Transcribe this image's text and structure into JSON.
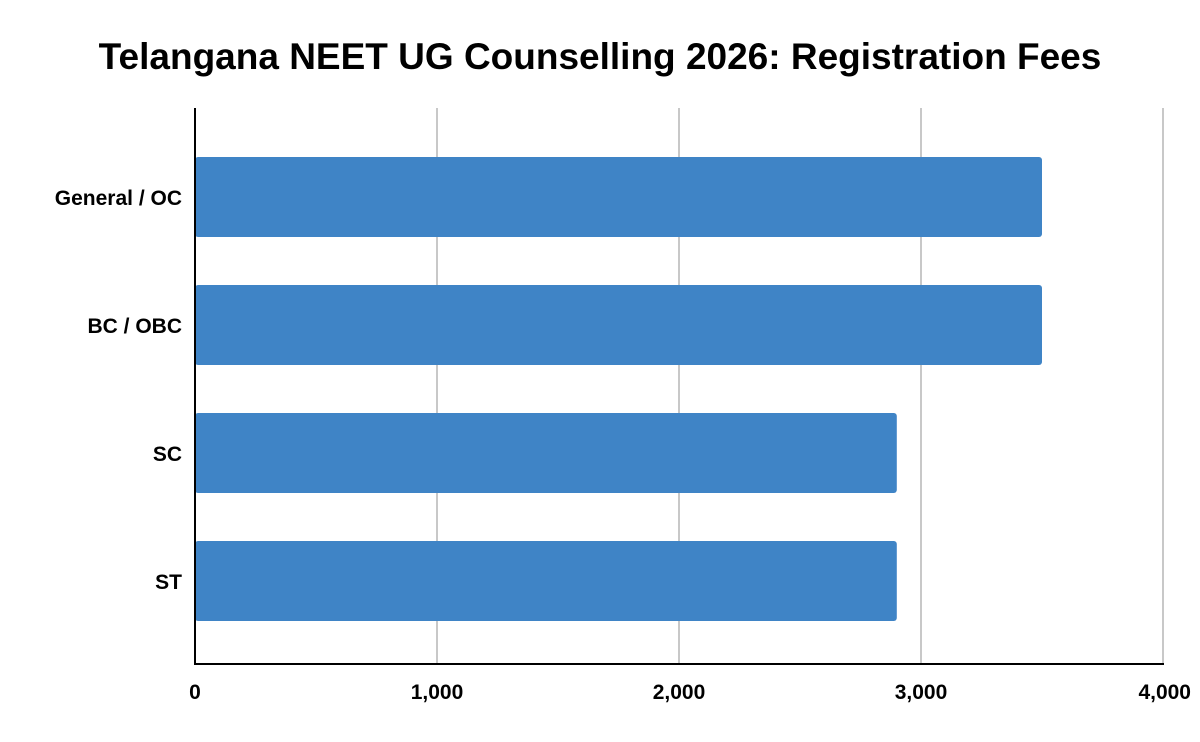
{
  "chart_data": {
    "type": "bar",
    "orientation": "horizontal",
    "title": "Telangana NEET UG Counselling 2026: Registration Fees",
    "categories": [
      "General / OC",
      "BC / OBC",
      "SC",
      "ST"
    ],
    "values": [
      3500,
      3500,
      2900,
      2900
    ],
    "xlim": [
      0,
      4000
    ],
    "xticks": [
      0,
      1000,
      2000,
      3000,
      4000
    ],
    "xtick_labels": [
      "0",
      "1,000",
      "2,000",
      "3,000",
      "4,000"
    ],
    "xlabel": "",
    "ylabel": "",
    "grid": "vertical",
    "legend": "none",
    "bar_color": "#3f84c6",
    "grid_color": "#c8c8c8",
    "axis_color": "#000000"
  }
}
